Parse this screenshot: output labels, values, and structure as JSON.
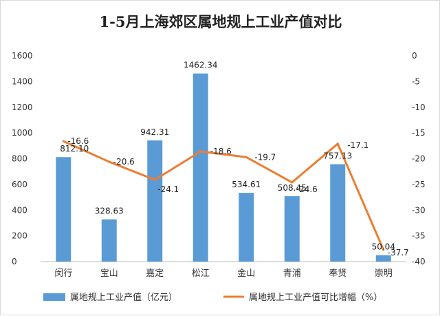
{
  "chart_data": {
    "type": "bar+line",
    "title": "1-5月上海郊区属地规上工业产值对比",
    "categories": [
      "闵行",
      "宝山",
      "嘉定",
      "松江",
      "金山",
      "青浦",
      "奉贤",
      "崇明"
    ],
    "series": [
      {
        "name": "属地规上工业产值（亿元）",
        "type": "bar",
        "axis": "left",
        "color": "#5b9bd5",
        "values": [
          812.1,
          328.63,
          942.31,
          1462.34,
          534.61,
          508.45,
          757.13,
          50.04
        ],
        "labels": [
          "812.10",
          "328.63",
          "942.31",
          "1462.34",
          "534.61",
          "508.45",
          "757.13",
          "50.04"
        ]
      },
      {
        "name": "属地规上工业产值可比增幅（%）",
        "type": "line",
        "axis": "right",
        "color": "#ed7d31",
        "values": [
          -16.6,
          -20.6,
          -24.1,
          -18.6,
          -19.7,
          -24.6,
          -17.1,
          -37.7
        ],
        "labels": [
          "-16.6",
          "-20.6",
          "-24.1",
          "-18.6",
          "-19.7",
          "-24.6",
          "-17.1",
          "-37.7"
        ]
      }
    ],
    "y_left": {
      "min": 0,
      "max": 1600,
      "step": 200,
      "ticks": [
        "0",
        "200",
        "400",
        "600",
        "800",
        "1000",
        "1200",
        "1400",
        "1600"
      ]
    },
    "y_right": {
      "min": -40,
      "max": 0,
      "step": 5,
      "ticks": [
        "0",
        "-5",
        "-10",
        "-15",
        "-20",
        "-25",
        "-30",
        "-35",
        "-40"
      ]
    },
    "grid": false,
    "legend": "bottom"
  }
}
